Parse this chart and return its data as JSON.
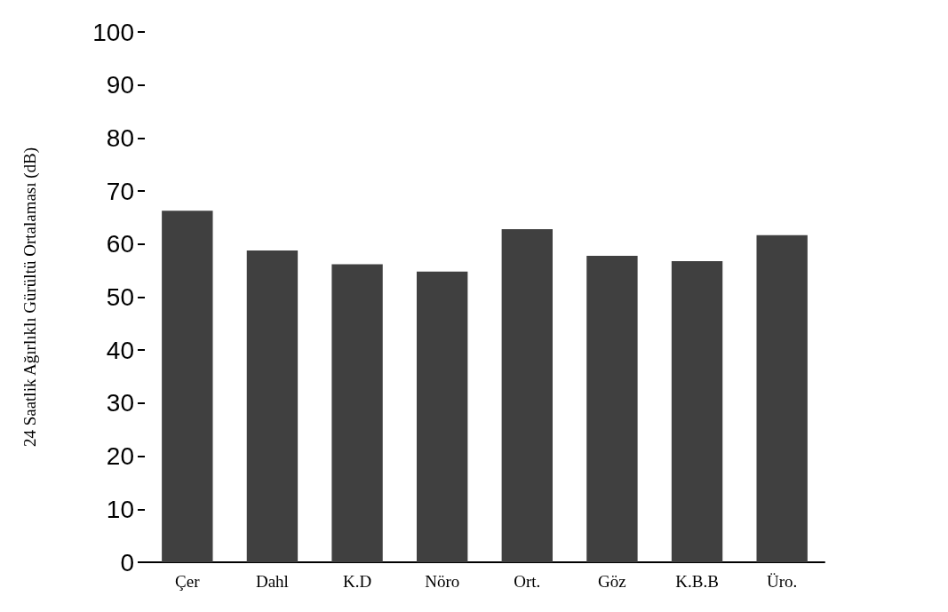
{
  "chart_data": {
    "type": "bar",
    "ylabel": "24 Saatlik Ağırlıklı Gürültü Ortalaması (dB)",
    "categories": [
      "Çer",
      "Dahl",
      "K.D",
      "Nöro",
      "Ort.",
      "Göz",
      "K.B.B",
      "Üro."
    ],
    "values": [
      66.3,
      58.8,
      56.2,
      54.8,
      62.8,
      57.8,
      56.8,
      61.7
    ],
    "color": "#404040",
    "ylim": [
      0,
      100
    ],
    "yticks": [
      0,
      10,
      20,
      30,
      40,
      50,
      60,
      70,
      80,
      90,
      100
    ]
  }
}
